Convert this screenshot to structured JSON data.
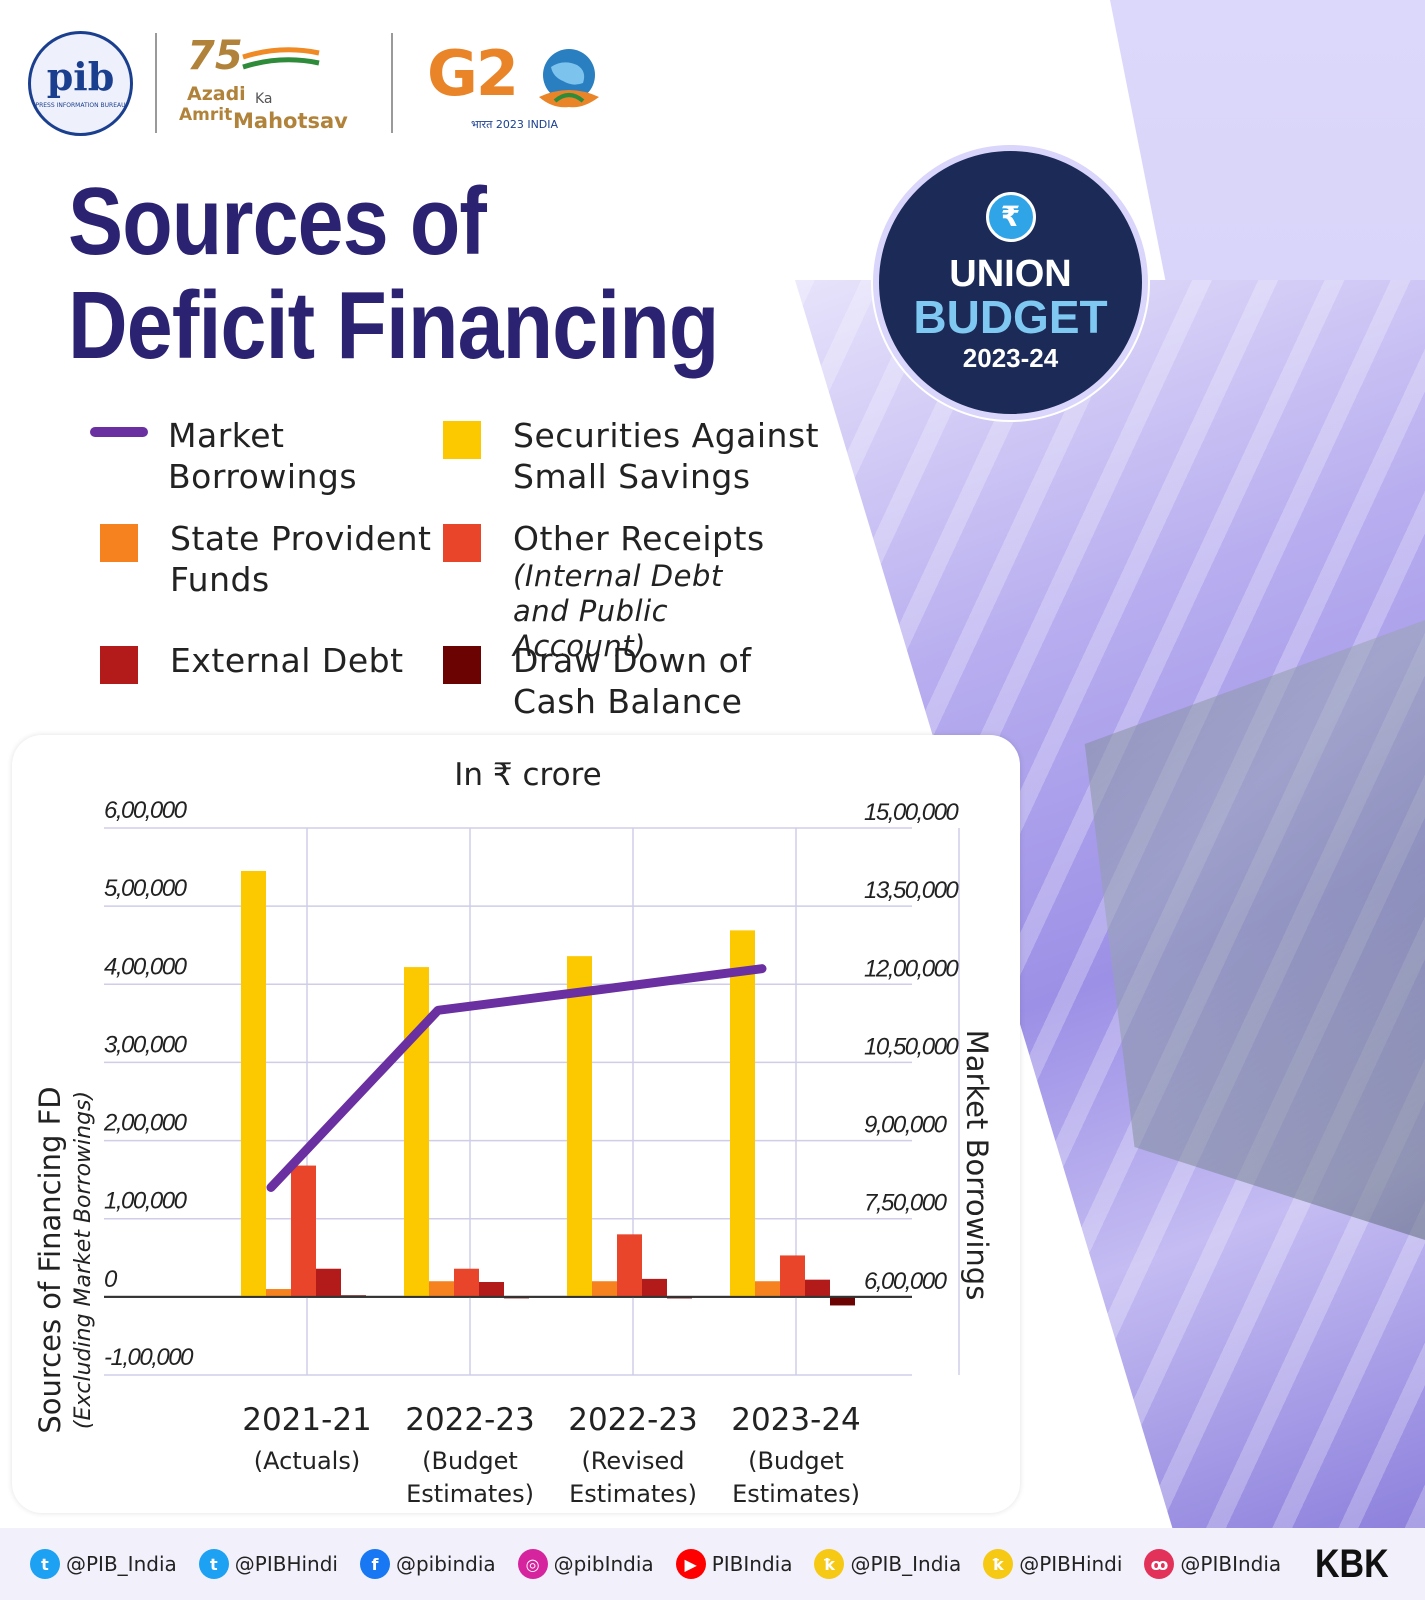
{
  "header": {
    "pib_logo_text": "pib",
    "pib_logo_sub": "PRESS INFORMATION BUREAU",
    "aam": {
      "number": "75",
      "w1": "Azadi",
      "w2": "Ka",
      "w3": "Amrit",
      "w4": "Mahotsav"
    },
    "g20": {
      "text": "G2",
      "sub": "भारत 2023 INDIA"
    }
  },
  "title": {
    "line1": "Sources of",
    "line2": "Deficit Financing"
  },
  "badge": {
    "symbol": "₹",
    "line1": "UNION",
    "line2": "BUDGET",
    "line3": "2023-24"
  },
  "colors": {
    "title": "#2b2372",
    "market_borrowings": "#6a2fa0",
    "securities_small_savings": "#fcc800",
    "state_provident_funds": "#f5821f",
    "other_receipts": "#e8452a",
    "external_debt": "#b31b1b",
    "draw_down_cash": "#6b0303"
  },
  "legend": [
    {
      "label": "Market Borrowings",
      "line1": "Market",
      "line2": "Borrowings",
      "sub": "",
      "swatch": "line",
      "color": "#6a2fa0"
    },
    {
      "label": "Securities Against Small Savings",
      "line1": "Securities Against",
      "line2": "Small Savings",
      "sub": "",
      "swatch": "box",
      "color": "#fcc800"
    },
    {
      "label": "State Provident Funds",
      "line1": "State Provident",
      "line2": "Funds",
      "sub": "",
      "swatch": "box",
      "color": "#f5821f"
    },
    {
      "label": "Other Receipts",
      "line1": "Other Receipts",
      "line2": "",
      "sub": "(Internal Debt and Public Account)",
      "swatch": "box",
      "color": "#e8452a"
    },
    {
      "label": "External Debt",
      "line1": "External Debt",
      "line2": "",
      "sub": "",
      "swatch": "box",
      "color": "#b31b1b"
    },
    {
      "label": "Draw Down of Cash Balance",
      "line1": "Draw Down of",
      "line2": "Cash Balance",
      "sub": "",
      "swatch": "box",
      "color": "#6b0303"
    }
  ],
  "chart_data": {
    "type": "bar",
    "title": "In ₹ crore",
    "categories": [
      {
        "year": "2021-21",
        "label": "(Actuals)",
        "label_lines": [
          "(Actuals)"
        ]
      },
      {
        "year": "2022-23",
        "label": "(Budget Estimates)",
        "label_lines": [
          "(Budget",
          "Estimates)"
        ]
      },
      {
        "year": "2022-23",
        "label": "(Revised Estimates)",
        "label_lines": [
          "(Revised",
          "Estimates)"
        ]
      },
      {
        "year": "2023-24",
        "label": "(Budget Estimates)",
        "label_lines": [
          "(Budget",
          "Estimates)"
        ]
      }
    ],
    "ylabel_left": "Sources of Financing FD",
    "ylabel_left_sub": "(Excluding Market Borrowings)",
    "ylabel_right": "Market Borrowings",
    "left_axis": {
      "min": -100000,
      "max": 600000,
      "ticks": [
        600000,
        500000,
        400000,
        300000,
        200000,
        100000,
        0,
        -100000
      ],
      "tick_labels": [
        "6,00,000",
        "5,00,000",
        "4,00,000",
        "3,00,000",
        "2,00,000",
        "1,00,000",
        "0",
        "-1,00,000"
      ]
    },
    "right_axis": {
      "min": 600000,
      "max": 1500000,
      "ticks": [
        1500000,
        1350000,
        1200000,
        1050000,
        900000,
        750000,
        600000
      ],
      "tick_labels": [
        "15,00,000",
        "13,50,000",
        "12,00,000",
        "10,50,000",
        "9,00,000",
        "7,50,000",
        "6,00,000"
      ]
    },
    "series": [
      {
        "name": "Securities Against Small Savings",
        "type": "bar",
        "axis": "left",
        "color": "#fcc800",
        "values": [
          545000,
          422000,
          436000,
          469000
        ]
      },
      {
        "name": "State Provident Funds",
        "type": "bar",
        "axis": "left",
        "color": "#f5821f",
        "values": [
          10000,
          20000,
          20000,
          20000
        ]
      },
      {
        "name": "Other Receipts",
        "type": "bar",
        "axis": "left",
        "color": "#e8452a",
        "values": [
          168000,
          36000,
          80000,
          53000
        ]
      },
      {
        "name": "External Debt",
        "type": "bar",
        "axis": "left",
        "color": "#b31b1b",
        "values": [
          36000,
          19000,
          23000,
          22000
        ]
      },
      {
        "name": "Draw Down of Cash Balance",
        "type": "bar",
        "axis": "left",
        "color": "#6b0303",
        "values": [
          2000,
          0,
          -2000,
          -11000
        ]
      },
      {
        "name": "Market Borrowings",
        "type": "line",
        "axis": "right",
        "color": "#6a2fa0",
        "values": [
          810000,
          1150000,
          1190000,
          1230000
        ]
      }
    ],
    "grid": true
  },
  "footer": {
    "handles": [
      {
        "icon": "twitter-icon",
        "text": "@PIB_India",
        "color": "#1da1f2",
        "glyph": "t"
      },
      {
        "icon": "twitter-icon",
        "text": "@PIBHindi",
        "color": "#1da1f2",
        "glyph": "t"
      },
      {
        "icon": "facebook-icon",
        "text": "@pibindia",
        "color": "#1877f2",
        "glyph": "f"
      },
      {
        "icon": "instagram-icon",
        "text": "@pibIndia",
        "color": "#d6249f",
        "glyph": "◎"
      },
      {
        "icon": "youtube-icon",
        "text": "PIBIndia",
        "color": "#ff0000",
        "glyph": "▶"
      },
      {
        "icon": "koo-icon",
        "text": "@PIB_India",
        "color": "#f6c914",
        "glyph": "ꝁ"
      },
      {
        "icon": "koo-icon",
        "text": "@PIBHindi",
        "color": "#f6c914",
        "glyph": "ꝁ"
      },
      {
        "icon": "sharechat-icon",
        "text": "@PIBIndia",
        "color": "#e3325a",
        "glyph": "ꝏ"
      }
    ],
    "kbk": "KBK"
  }
}
